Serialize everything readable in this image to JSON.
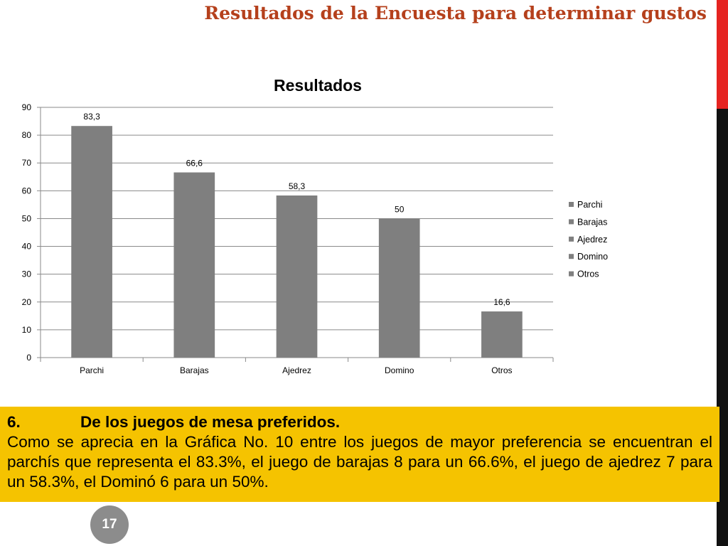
{
  "slide": {
    "title": "Resultados de la Encuesta para determinar gustos",
    "page_number": "17",
    "colors": {
      "title": "#b5401c",
      "box": "#f5c300",
      "bar": "#7f7f7f",
      "accent_red": "#e52421"
    }
  },
  "text_box": {
    "heading_number": "6.",
    "heading_text": "De los juegos de mesa preferidos.",
    "body": "Como se aprecia en la Gráfica No. 10 entre los juegos de mayor preferencia se encuentran el parchís que representa el 83.3%, el juego de barajas 8 para un 66.6%, el juego de ajedrez 7 para un 58.3%, el Dominó 6 para un 50%."
  },
  "chart_data": {
    "type": "bar",
    "title": "Resultados",
    "xlabel": "",
    "ylabel": "",
    "categories": [
      "Parchi",
      "Barajas",
      "Ajedrez",
      "Domino",
      "Otros"
    ],
    "values": [
      83.3,
      66.6,
      58.3,
      50,
      16.6
    ],
    "data_labels": [
      "83,3",
      "66,6",
      "58,3",
      "50",
      "16,6"
    ],
    "ylim": [
      0,
      90
    ],
    "yticks": [
      0,
      10,
      20,
      30,
      40,
      50,
      60,
      70,
      80,
      90
    ],
    "grid": true,
    "legend": {
      "position": "right",
      "entries": [
        "Parchi",
        "Barajas",
        "Ajedrez",
        "Domino",
        "Otros"
      ]
    },
    "bar_color": "#7f7f7f"
  }
}
